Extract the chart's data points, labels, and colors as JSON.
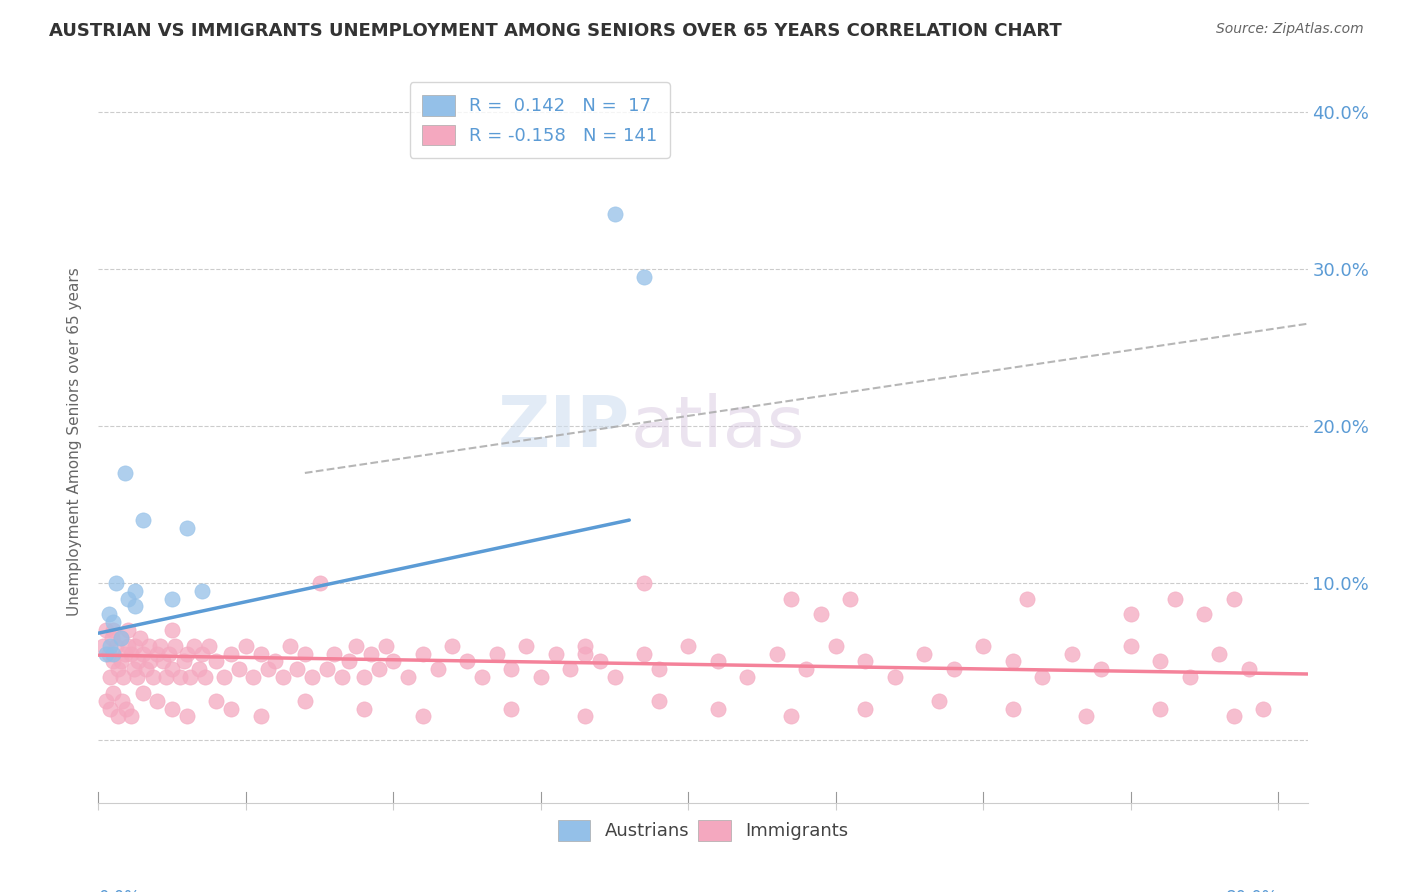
{
  "title": "AUSTRIAN VS IMMIGRANTS UNEMPLOYMENT AMONG SENIORS OVER 65 YEARS CORRELATION CHART",
  "source": "Source: ZipAtlas.com",
  "ylabel": "Unemployment Among Seniors over 65 years",
  "blue_color": "#5b9bd5",
  "pink_color": "#f4829a",
  "blue_scatter_color": "#94c0e8",
  "pink_scatter_color": "#f4a8bf",
  "background_color": "#ffffff",
  "xlim": [
    0.0,
    0.82
  ],
  "ylim": [
    -0.04,
    0.42
  ],
  "ytick_vals": [
    0.0,
    0.1,
    0.2,
    0.3,
    0.4
  ],
  "ytick_labels_right": [
    "",
    "10.0%",
    "20.0%",
    "30.0%",
    "40.0%"
  ],
  "blue_line_x": [
    0.0,
    0.36
  ],
  "blue_line_y": [
    0.068,
    0.14
  ],
  "pink_line_x": [
    0.0,
    0.82
  ],
  "pink_line_y": [
    0.054,
    0.042
  ],
  "dash_line_x": [
    0.14,
    0.82
  ],
  "dash_line_y": [
    0.17,
    0.265
  ],
  "austrians_x": [
    0.005,
    0.007,
    0.008,
    0.01,
    0.01,
    0.012,
    0.015,
    0.018,
    0.02,
    0.025,
    0.025,
    0.03,
    0.05,
    0.06,
    0.07,
    0.35,
    0.37
  ],
  "austrians_y": [
    0.055,
    0.08,
    0.06,
    0.055,
    0.075,
    0.1,
    0.065,
    0.17,
    0.09,
    0.085,
    0.095,
    0.14,
    0.09,
    0.135,
    0.095,
    0.335,
    0.295
  ],
  "immigrants_x": [
    0.003,
    0.005,
    0.007,
    0.008,
    0.009,
    0.01,
    0.01,
    0.012,
    0.013,
    0.015,
    0.015,
    0.017,
    0.018,
    0.02,
    0.02,
    0.022,
    0.024,
    0.025,
    0.026,
    0.027,
    0.028,
    0.03,
    0.032,
    0.034,
    0.035,
    0.037,
    0.04,
    0.042,
    0.044,
    0.046,
    0.048,
    0.05,
    0.052,
    0.055,
    0.058,
    0.06,
    0.062,
    0.065,
    0.068,
    0.07,
    0.072,
    0.075,
    0.08,
    0.085,
    0.09,
    0.095,
    0.1,
    0.105,
    0.11,
    0.115,
    0.12,
    0.125,
    0.13,
    0.135,
    0.14,
    0.145,
    0.15,
    0.155,
    0.16,
    0.165,
    0.17,
    0.175,
    0.18,
    0.185,
    0.19,
    0.195,
    0.2,
    0.21,
    0.22,
    0.23,
    0.24,
    0.25,
    0.26,
    0.27,
    0.28,
    0.29,
    0.3,
    0.31,
    0.32,
    0.33,
    0.34,
    0.35,
    0.37,
    0.38,
    0.4,
    0.42,
    0.44,
    0.46,
    0.48,
    0.5,
    0.52,
    0.54,
    0.56,
    0.58,
    0.6,
    0.62,
    0.64,
    0.66,
    0.68,
    0.7,
    0.72,
    0.74,
    0.76,
    0.78,
    0.005,
    0.008,
    0.01,
    0.013,
    0.016,
    0.019,
    0.022,
    0.03,
    0.04,
    0.05,
    0.06,
    0.08,
    0.09,
    0.11,
    0.14,
    0.18,
    0.22,
    0.28,
    0.33,
    0.38,
    0.42,
    0.47,
    0.52,
    0.57,
    0.62,
    0.67,
    0.72,
    0.77,
    0.37,
    0.49,
    0.51,
    0.63,
    0.7,
    0.73,
    0.75,
    0.77,
    0.79,
    0.05,
    0.33,
    0.47
  ],
  "immigrants_y": [
    0.06,
    0.07,
    0.055,
    0.04,
    0.065,
    0.05,
    0.07,
    0.06,
    0.045,
    0.065,
    0.05,
    0.04,
    0.055,
    0.06,
    0.07,
    0.055,
    0.045,
    0.06,
    0.04,
    0.05,
    0.065,
    0.055,
    0.045,
    0.06,
    0.05,
    0.04,
    0.055,
    0.06,
    0.05,
    0.04,
    0.055,
    0.045,
    0.06,
    0.04,
    0.05,
    0.055,
    0.04,
    0.06,
    0.045,
    0.055,
    0.04,
    0.06,
    0.05,
    0.04,
    0.055,
    0.045,
    0.06,
    0.04,
    0.055,
    0.045,
    0.05,
    0.04,
    0.06,
    0.045,
    0.055,
    0.04,
    0.1,
    0.045,
    0.055,
    0.04,
    0.05,
    0.06,
    0.04,
    0.055,
    0.045,
    0.06,
    0.05,
    0.04,
    0.055,
    0.045,
    0.06,
    0.05,
    0.04,
    0.055,
    0.045,
    0.06,
    0.04,
    0.055,
    0.045,
    0.06,
    0.05,
    0.04,
    0.055,
    0.045,
    0.06,
    0.05,
    0.04,
    0.055,
    0.045,
    0.06,
    0.05,
    0.04,
    0.055,
    0.045,
    0.06,
    0.05,
    0.04,
    0.055,
    0.045,
    0.06,
    0.05,
    0.04,
    0.055,
    0.045,
    0.025,
    0.02,
    0.03,
    0.015,
    0.025,
    0.02,
    0.015,
    0.03,
    0.025,
    0.02,
    0.015,
    0.025,
    0.02,
    0.015,
    0.025,
    0.02,
    0.015,
    0.02,
    0.015,
    0.025,
    0.02,
    0.015,
    0.02,
    0.025,
    0.02,
    0.015,
    0.02,
    0.015,
    0.1,
    0.08,
    0.09,
    0.09,
    0.08,
    0.09,
    0.08,
    0.09,
    0.02,
    0.07,
    0.055,
    0.09
  ]
}
